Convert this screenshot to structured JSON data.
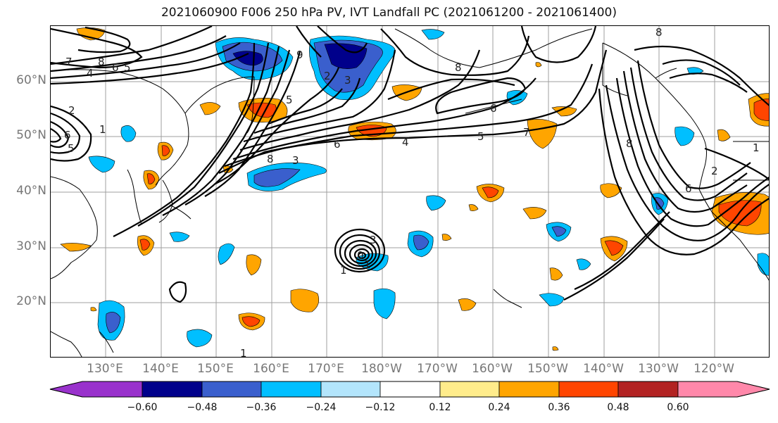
{
  "title": "2021060900 F006 250 hPa PV, IVT Landfall PC (2021061200 - 2021061400)",
  "lat_labels": [
    "60°N",
    "50°N",
    "40°N",
    "30°N",
    "20°N"
  ],
  "lon_labels": [
    "130°E",
    "140°E",
    "150°E",
    "160°E",
    "170°E",
    "180°W",
    "170°W",
    "160°W",
    "150°W",
    "140°W",
    "130°W",
    "120°W"
  ],
  "contour_labels": [
    "7",
    "8",
    "6",
    "5",
    "4",
    "2",
    "6",
    "5",
    "1",
    "8",
    "3",
    "6",
    "4",
    "5",
    "9",
    "8",
    "2",
    "6",
    "3",
    "5",
    "2",
    "8",
    "6",
    "0",
    "3",
    "1",
    "1",
    "8",
    "7",
    "1",
    "1"
  ],
  "colorbar": {
    "ticks": [
      "−0.60",
      "−0.48",
      "−0.36",
      "−0.24",
      "−0.12",
      "0.12",
      "0.24",
      "0.36",
      "0.48",
      "0.60"
    ],
    "colors": [
      "#9932cc",
      "#00008b",
      "#3a5fcd",
      "#00bfff",
      "#b3e5fc",
      "#ffffff",
      "#ffec8b",
      "#ffa500",
      "#ff4500",
      "#b22222",
      "#ff88aa"
    ]
  },
  "colors": {
    "land_outline": "#000000",
    "grid": "#888888"
  }
}
